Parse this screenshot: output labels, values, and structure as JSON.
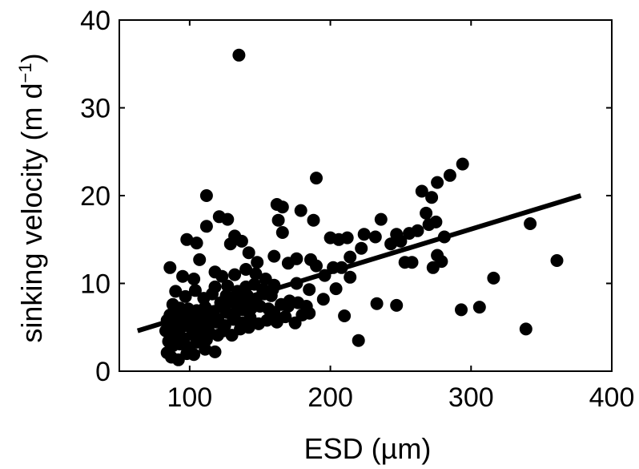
{
  "chart_data": {
    "type": "scatter",
    "xlabel": "ESD (µm)",
    "ylabel_main": "sinking velocity (m d",
    "ylabel_sup": "−1",
    "ylabel_close": ")",
    "xlim": [
      50,
      400
    ],
    "ylim": [
      0,
      40
    ],
    "xticks": [
      100,
      200,
      300,
      400
    ],
    "yticks": [
      0,
      10,
      20,
      30,
      40
    ],
    "grid": false,
    "marker_color": "#000000",
    "series": [
      {
        "points": [
          [
            135,
            36
          ],
          [
            190,
            22
          ],
          [
            112,
            20
          ],
          [
            294,
            23.6
          ],
          [
            285,
            22.3
          ],
          [
            276,
            21.5
          ],
          [
            265,
            20.5
          ],
          [
            272,
            19.8
          ],
          [
            268,
            18
          ],
          [
            275,
            17
          ],
          [
            270,
            16.7
          ],
          [
            281,
            15.3
          ],
          [
            262,
            16
          ],
          [
            256,
            15.7
          ],
          [
            250,
            14.8
          ],
          [
            247,
            15.6
          ],
          [
            236,
            17.3
          ],
          [
            243,
            14.5
          ],
          [
            232,
            15.3
          ],
          [
            224,
            15.6
          ],
          [
            222,
            14
          ],
          [
            212,
            15.2
          ],
          [
            206,
            15
          ],
          [
            200,
            15.2
          ],
          [
            214,
            13
          ],
          [
            208,
            11.8
          ],
          [
            202,
            11.8
          ],
          [
            190,
            12
          ],
          [
            186,
            12.7
          ],
          [
            176,
            12.8
          ],
          [
            179,
            18.3
          ],
          [
            188,
            17.2
          ],
          [
            166,
            18.7
          ],
          [
            162,
            19
          ],
          [
            163,
            17.2
          ],
          [
            166,
            15.8
          ],
          [
            121,
            17.6
          ],
          [
            127,
            17.3
          ],
          [
            132,
            15.4
          ],
          [
            137,
            14.8
          ],
          [
            129,
            14.5
          ],
          [
            142,
            13.5
          ],
          [
            148,
            12.4
          ],
          [
            160,
            13.1
          ],
          [
            170,
            12.3
          ],
          [
            98,
            15
          ],
          [
            105,
            14.6
          ],
          [
            112,
            16.5
          ],
          [
            107,
            12.7
          ],
          [
            86,
            11.8
          ],
          [
            118,
            11.3
          ],
          [
            123,
            10.8
          ],
          [
            95,
            10.8
          ],
          [
            103,
            10.5
          ],
          [
            342,
            16.8
          ],
          [
            361,
            12.6
          ],
          [
            316,
            10.6
          ],
          [
            273,
            11.8
          ],
          [
            279,
            12.5
          ],
          [
            276,
            13.2
          ],
          [
            253,
            12.4
          ],
          [
            258,
            12.4
          ],
          [
            214,
            10.7
          ],
          [
            196,
            10.9
          ],
          [
            185,
            9.3
          ],
          [
            176,
            10
          ],
          [
            160,
            9.8
          ],
          [
            154,
            10.5
          ],
          [
            147,
            11.1
          ],
          [
            140,
            11.6
          ],
          [
            132,
            11
          ],
          [
            127,
            9.7
          ],
          [
            116,
            8.8
          ],
          [
            110,
            8.3
          ],
          [
            104,
            9.2
          ],
          [
            97,
            8.5
          ],
          [
            90,
            9.1
          ],
          [
            88,
            7.6
          ],
          [
            93,
            7.2
          ],
          [
            99,
            7.1
          ],
          [
            105,
            6.9
          ],
          [
            111,
            7.3
          ],
          [
            117,
            6.8
          ],
          [
            123,
            7.4
          ],
          [
            129,
            7.9
          ],
          [
            135,
            8.3
          ],
          [
            141,
            8.6
          ],
          [
            147,
            8.1
          ],
          [
            153,
            8.8
          ],
          [
            159,
            9.3
          ],
          [
            165,
            7.6
          ],
          [
            171,
            8
          ],
          [
            177,
            7.8
          ],
          [
            183,
            7.4
          ],
          [
            195,
            8.2
          ],
          [
            204,
            9.4
          ],
          [
            233,
            7.7
          ],
          [
            247,
            7.5
          ],
          [
            293,
            7
          ],
          [
            306,
            7.3
          ],
          [
            339,
            4.8
          ],
          [
            220,
            3.5
          ],
          [
            210,
            6.3
          ],
          [
            185,
            6.6
          ],
          [
            175,
            5.5
          ],
          [
            168,
            6.2
          ],
          [
            162,
            5.6
          ],
          [
            155,
            5.8
          ],
          [
            149,
            5.4
          ],
          [
            143,
            6.1
          ],
          [
            137,
            5.5
          ],
          [
            131,
            5.9
          ],
          [
            125,
            5.2
          ],
          [
            119,
            5.6
          ],
          [
            113,
            5
          ],
          [
            107,
            5.4
          ],
          [
            101,
            4.9
          ],
          [
            95,
            5.3
          ],
          [
            89,
            4.7
          ],
          [
            84,
            5.8
          ],
          [
            86,
            6.4
          ],
          [
            91,
            6.2
          ],
          [
            96,
            6.6
          ],
          [
            102,
            6.3
          ],
          [
            108,
            6.1
          ],
          [
            114,
            6.4
          ],
          [
            120,
            5.9
          ],
          [
            126,
            6.7
          ],
          [
            132,
            6.5
          ],
          [
            138,
            7
          ],
          [
            144,
            7.2
          ],
          [
            150,
            7.4
          ],
          [
            156,
            7.1
          ],
          [
            120,
            4.1
          ],
          [
            114,
            4.4
          ],
          [
            108,
            3.9
          ],
          [
            102,
            4.2
          ],
          [
            96,
            3.7
          ],
          [
            90,
            4
          ],
          [
            85,
            3.4
          ],
          [
            88,
            2.9
          ],
          [
            93,
            3.1
          ],
          [
            99,
            2.7
          ],
          [
            105,
            3.3
          ],
          [
            111,
            2.5
          ],
          [
            118,
            2.2
          ],
          [
            84,
            2.1
          ],
          [
            87,
            1.6
          ],
          [
            92,
            1.3
          ],
          [
            98,
            2
          ],
          [
            103,
            1.9
          ],
          [
            83,
            4.6
          ],
          [
            94,
            5
          ],
          [
            100,
            5.7
          ],
          [
            106,
            4.6
          ],
          [
            112,
            3.6
          ],
          [
            124,
            4.6
          ],
          [
            130,
            4.1
          ],
          [
            136,
            4.8
          ],
          [
            142,
            5
          ],
          [
            160,
            6.7
          ],
          [
            170,
            7.4
          ],
          [
            180,
            6.4
          ],
          [
            126,
            8.6
          ],
          [
            134,
            9.1
          ],
          [
            140,
            9.6
          ],
          [
            146,
            9.9
          ],
          [
            152,
            9.3
          ],
          [
            158,
            8.6
          ],
          [
            118,
            9.6
          ],
          [
            122,
            7.8
          ],
          [
            128,
            8.2
          ],
          [
            134,
            7.2
          ],
          [
            140,
            7.8
          ],
          [
            99,
            6
          ],
          [
            95,
            6.9
          ],
          [
            91,
            5.5
          ],
          [
            87,
            5.1
          ],
          [
            110,
            5.8
          ],
          [
            116,
            6.2
          ]
        ]
      }
    ],
    "fit_line": {
      "x": [
        63,
        378
      ],
      "y": [
        4.6,
        20
      ]
    }
  }
}
